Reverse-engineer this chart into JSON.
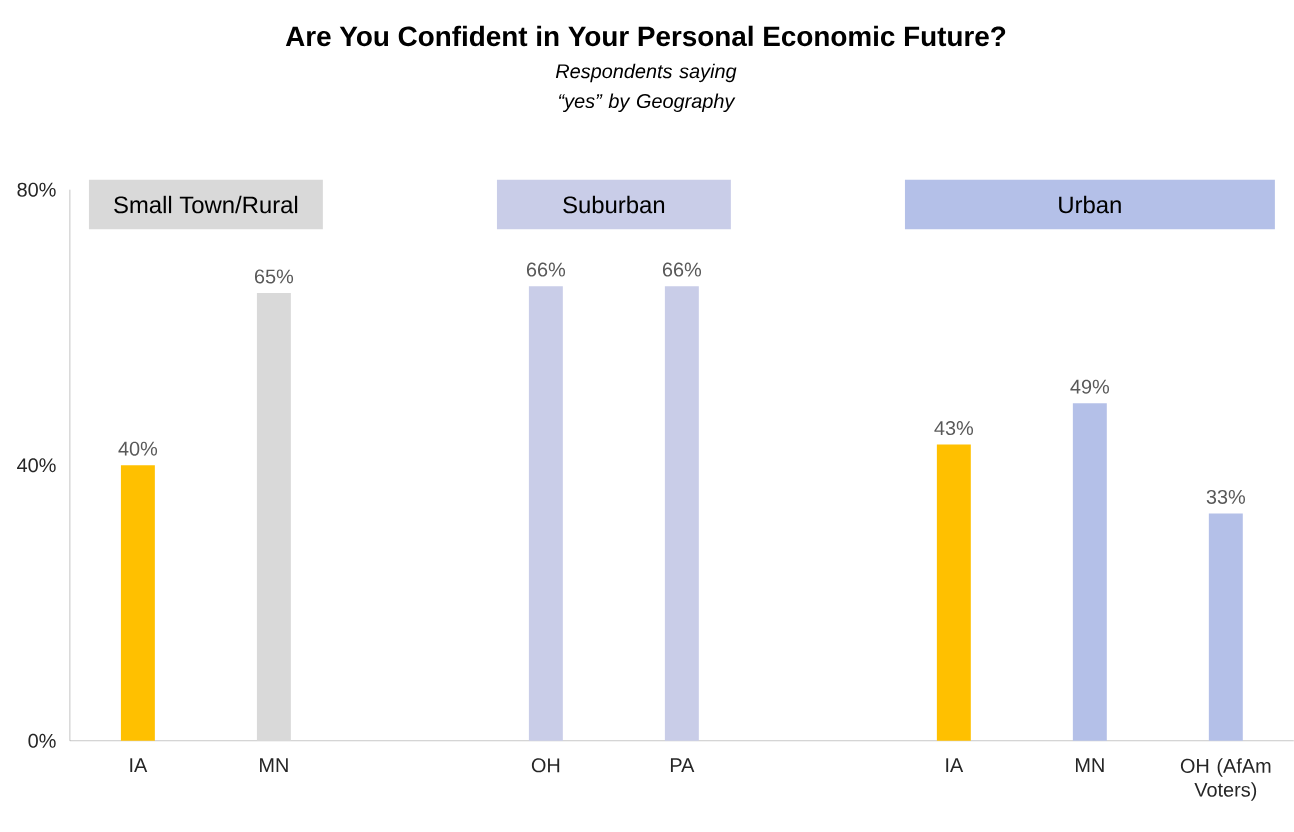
{
  "chart_data": {
    "type": "bar",
    "title": "Are You Confident in Your Personal Economic Future?",
    "subtitle": "Respondents saying “yes” by Geography",
    "categories": [
      "IA",
      "MN",
      null,
      "OH",
      "PA",
      null,
      "IA",
      "MN",
      "OH (AfAm Voters)"
    ],
    "values": [
      40,
      65,
      null,
      66,
      66,
      null,
      43,
      49,
      33
    ],
    "colors": [
      "#ffc000",
      "#d9d9d9",
      null,
      "#c9cde8",
      "#c9cde8",
      null,
      "#ffc000",
      "#b4c0e8",
      "#b4c0e8"
    ],
    "value_labels": [
      "40%",
      "65%",
      null,
      "66%",
      "66%",
      null,
      "43%",
      "49%",
      "33%"
    ],
    "ylim": [
      0,
      80
    ],
    "yticks": [
      {
        "value": 0,
        "label": "0%"
      },
      {
        "value": 40,
        "label": "40%"
      },
      {
        "value": 80,
        "label": "80%"
      }
    ],
    "annotations": [
      "Small Town/Rural",
      "Suburban",
      "Urban"
    ]
  }
}
